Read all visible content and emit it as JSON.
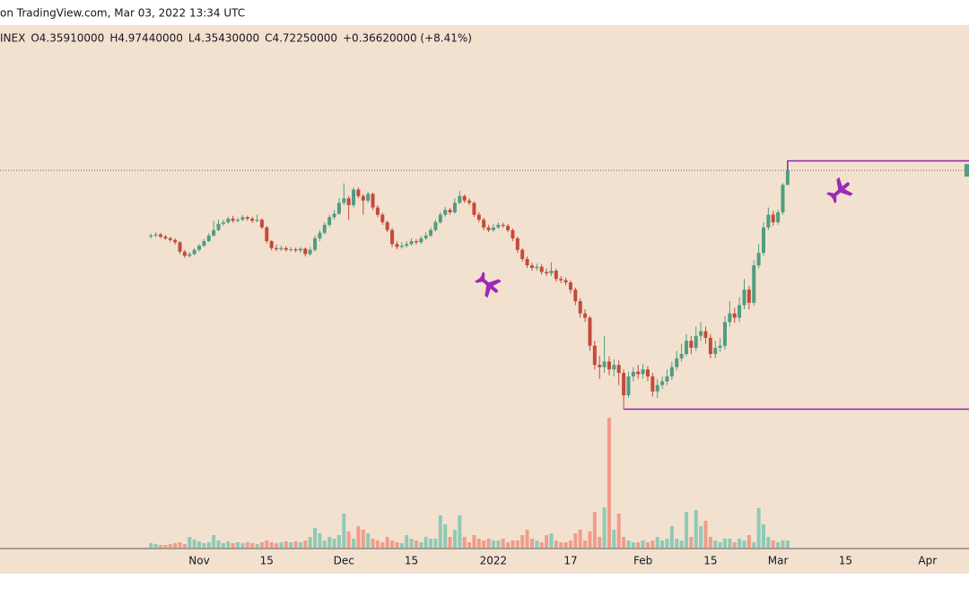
{
  "header": {
    "source": "on TradingView.com, Mar 03, 2022 13:34 UTC",
    "ohlc": [
      "INEX",
      "O4.35910000",
      "H4.97440000",
      "L4.35430000",
      "C4.72250000",
      "+0.36620000 (+8.41%)"
    ]
  },
  "chart_data": {
    "type": "candlestick",
    "log": true,
    "up_color": "#4f9e82",
    "down_color": "#c44a3a",
    "volume_up_color": "#8ecab6",
    "volume_down_color": "#f19c8b",
    "level_color": "#8e24aa",
    "xlim": [
      -31.3,
      169.6
    ],
    "ylim": [
      0.59,
      10.5
    ],
    "vlim": [
      0,
      160
    ],
    "xticks": [
      {
        "value": 10,
        "label": "Nov"
      },
      {
        "value": 24,
        "label": "15"
      },
      {
        "value": 40,
        "label": "Dec"
      },
      {
        "value": 54,
        "label": "15"
      },
      {
        "value": 71,
        "label": "2022"
      },
      {
        "value": 87,
        "label": "17"
      },
      {
        "value": 102,
        "label": "Feb"
      },
      {
        "value": 116,
        "label": "15"
      },
      {
        "value": 130,
        "label": "Mar"
      },
      {
        "value": 144,
        "label": "15"
      },
      {
        "value": 161,
        "label": "Apr"
      }
    ],
    "open": [
      3.28,
      3.3,
      3.32,
      3.28,
      3.25,
      3.22,
      3.18,
      3.02,
      2.95,
      2.98,
      3.05,
      3.12,
      3.2,
      3.3,
      3.4,
      3.52,
      3.55,
      3.62,
      3.58,
      3.6,
      3.65,
      3.62,
      3.58,
      3.6,
      3.45,
      3.2,
      3.08,
      3.06,
      3.08,
      3.05,
      3.06,
      3.04,
      3.07,
      2.98,
      3.05,
      3.25,
      3.35,
      3.5,
      3.65,
      3.72,
      3.95,
      4.05,
      3.9,
      4.25,
      4.1,
      4.0,
      4.15,
      3.85,
      3.7,
      3.55,
      3.4,
      3.15,
      3.1,
      3.12,
      3.15,
      3.2,
      3.18,
      3.25,
      3.3,
      3.4,
      3.55,
      3.7,
      3.8,
      3.75,
      3.95,
      4.1,
      4.0,
      3.95,
      3.7,
      3.6,
      3.45,
      3.4,
      3.45,
      3.5,
      3.48,
      3.4,
      3.25,
      3.05,
      2.9,
      2.8,
      2.76,
      2.78,
      2.7,
      2.68,
      2.72,
      2.6,
      2.58,
      2.55,
      2.45,
      2.3,
      2.15,
      2.1,
      1.8,
      1.62,
      1.6,
      1.65,
      1.58,
      1.62,
      1.55,
      1.37,
      1.52,
      1.56,
      1.54,
      1.58,
      1.52,
      1.4,
      1.45,
      1.48,
      1.52,
      1.6,
      1.68,
      1.72,
      1.85,
      1.78,
      1.9,
      1.95,
      1.88,
      1.72,
      1.78,
      1.8,
      2.05,
      2.15,
      2.1,
      2.25,
      2.45,
      2.28,
      2.8,
      3.0,
      3.45,
      3.7,
      3.55,
      3.75,
      4.3591
    ],
    "high": [
      3.34,
      3.36,
      3.35,
      3.31,
      3.28,
      3.25,
      3.2,
      3.05,
      3.01,
      3.08,
      3.15,
      3.24,
      3.34,
      3.58,
      3.6,
      3.6,
      3.66,
      3.68,
      3.64,
      3.7,
      3.68,
      3.66,
      3.7,
      3.63,
      3.48,
      3.22,
      3.14,
      3.12,
      3.11,
      3.1,
      3.09,
      3.1,
      3.09,
      3.1,
      3.3,
      3.4,
      3.55,
      3.7,
      3.8,
      4.05,
      4.4,
      4.1,
      4.3,
      4.3,
      4.15,
      4.2,
      4.18,
      3.9,
      3.74,
      3.58,
      3.44,
      3.2,
      3.18,
      3.2,
      3.25,
      3.24,
      3.29,
      3.36,
      3.45,
      3.6,
      3.75,
      3.86,
      3.84,
      4.05,
      4.22,
      4.14,
      4.05,
      3.98,
      3.75,
      3.64,
      3.5,
      3.52,
      3.55,
      3.54,
      3.52,
      3.43,
      3.28,
      3.08,
      2.94,
      2.84,
      2.83,
      2.82,
      2.75,
      2.85,
      2.75,
      2.64,
      2.62,
      2.58,
      2.48,
      2.34,
      2.2,
      2.12,
      1.85,
      1.7,
      1.9,
      1.7,
      1.67,
      1.66,
      1.58,
      1.56,
      1.6,
      1.62,
      1.63,
      1.61,
      1.55,
      1.5,
      1.52,
      1.58,
      1.65,
      1.75,
      1.82,
      1.92,
      1.9,
      2.0,
      2.05,
      2.0,
      1.92,
      1.85,
      1.88,
      2.12,
      2.3,
      2.22,
      2.35,
      2.6,
      2.5,
      2.88,
      3.15,
      3.55,
      3.85,
      3.78,
      3.8,
      4.4,
      4.9744
    ],
    "low": [
      3.25,
      3.27,
      3.25,
      3.22,
      3.19,
      3.14,
      2.98,
      2.92,
      2.92,
      2.96,
      3.02,
      3.1,
      3.18,
      3.28,
      3.38,
      3.48,
      3.52,
      3.54,
      3.55,
      3.57,
      3.58,
      3.54,
      3.55,
      3.42,
      3.16,
      3.04,
      3.03,
      3.03,
      3.02,
      3.02,
      3.01,
      3.0,
      2.94,
      2.95,
      3.02,
      3.2,
      3.32,
      3.46,
      3.6,
      3.7,
      3.9,
      3.6,
      3.85,
      4.05,
      3.7,
      3.95,
      3.8,
      3.65,
      3.5,
      3.36,
      3.1,
      3.06,
      3.07,
      3.09,
      3.12,
      3.14,
      3.15,
      3.22,
      3.27,
      3.37,
      3.52,
      3.66,
      3.7,
      3.72,
      3.92,
      3.95,
      3.9,
      3.65,
      3.55,
      3.4,
      3.36,
      3.37,
      3.42,
      3.44,
      3.36,
      3.2,
      3.0,
      2.86,
      2.76,
      2.72,
      2.72,
      2.66,
      2.64,
      2.64,
      2.56,
      2.54,
      2.51,
      2.4,
      2.25,
      2.1,
      2.05,
      1.75,
      1.58,
      1.5,
      1.55,
      1.53,
      1.52,
      1.45,
      1.27,
      1.35,
      1.48,
      1.5,
      1.5,
      1.48,
      1.36,
      1.35,
      1.42,
      1.45,
      1.49,
      1.57,
      1.65,
      1.7,
      1.72,
      1.75,
      1.85,
      1.82,
      1.68,
      1.68,
      1.74,
      1.76,
      2.0,
      2.04,
      2.05,
      2.2,
      2.2,
      2.24,
      2.75,
      2.95,
      3.4,
      3.48,
      3.5,
      3.7,
      4.3543
    ],
    "close": [
      3.3,
      3.32,
      3.28,
      3.25,
      3.22,
      3.18,
      3.02,
      2.95,
      2.98,
      3.05,
      3.12,
      3.2,
      3.3,
      3.4,
      3.52,
      3.55,
      3.62,
      3.58,
      3.6,
      3.65,
      3.62,
      3.58,
      3.6,
      3.45,
      3.2,
      3.08,
      3.06,
      3.08,
      3.05,
      3.06,
      3.04,
      3.07,
      2.98,
      3.05,
      3.25,
      3.35,
      3.5,
      3.65,
      3.72,
      3.95,
      4.05,
      3.9,
      4.25,
      4.1,
      4.0,
      4.15,
      3.85,
      3.7,
      3.55,
      3.4,
      3.15,
      3.1,
      3.12,
      3.15,
      3.2,
      3.18,
      3.25,
      3.3,
      3.4,
      3.55,
      3.7,
      3.8,
      3.75,
      3.95,
      4.1,
      4.0,
      3.95,
      3.7,
      3.6,
      3.45,
      3.4,
      3.45,
      3.5,
      3.48,
      3.4,
      3.25,
      3.05,
      2.9,
      2.8,
      2.76,
      2.78,
      2.7,
      2.68,
      2.72,
      2.6,
      2.58,
      2.55,
      2.45,
      2.3,
      2.15,
      2.1,
      1.8,
      1.62,
      1.6,
      1.65,
      1.58,
      1.62,
      1.55,
      1.37,
      1.52,
      1.56,
      1.54,
      1.58,
      1.52,
      1.4,
      1.45,
      1.48,
      1.52,
      1.6,
      1.68,
      1.72,
      1.85,
      1.78,
      1.9,
      1.95,
      1.88,
      1.72,
      1.78,
      1.8,
      2.05,
      2.15,
      2.1,
      2.25,
      2.45,
      2.28,
      2.8,
      3.0,
      3.45,
      3.7,
      3.55,
      3.75,
      4.36,
      4.7225
    ],
    "volume": [
      5,
      4,
      3,
      3,
      4,
      5,
      6,
      4,
      12,
      9,
      7,
      5,
      6,
      14,
      8,
      5,
      7,
      5,
      6,
      5,
      6,
      5,
      4,
      6,
      8,
      6,
      5,
      6,
      7,
      6,
      7,
      6,
      8,
      12,
      22,
      16,
      8,
      12,
      10,
      14,
      38,
      18,
      10,
      24,
      20,
      16,
      10,
      8,
      6,
      12,
      8,
      6,
      5,
      14,
      10,
      8,
      6,
      12,
      10,
      10,
      36,
      26,
      12,
      20,
      36,
      12,
      6,
      14,
      10,
      8,
      10,
      8,
      8,
      10,
      6,
      8,
      8,
      14,
      20,
      10,
      8,
      6,
      14,
      16,
      8,
      6,
      6,
      8,
      16,
      20,
      8,
      18,
      40,
      12,
      45,
      145,
      20,
      38,
      12,
      8,
      6,
      6,
      8,
      6,
      8,
      12,
      8,
      10,
      24,
      10,
      8,
      40,
      12,
      42,
      24,
      30,
      12,
      8,
      6,
      10,
      10,
      6,
      10,
      8,
      14,
      6,
      44,
      26,
      12,
      8,
      6,
      8,
      8
    ]
  }
}
